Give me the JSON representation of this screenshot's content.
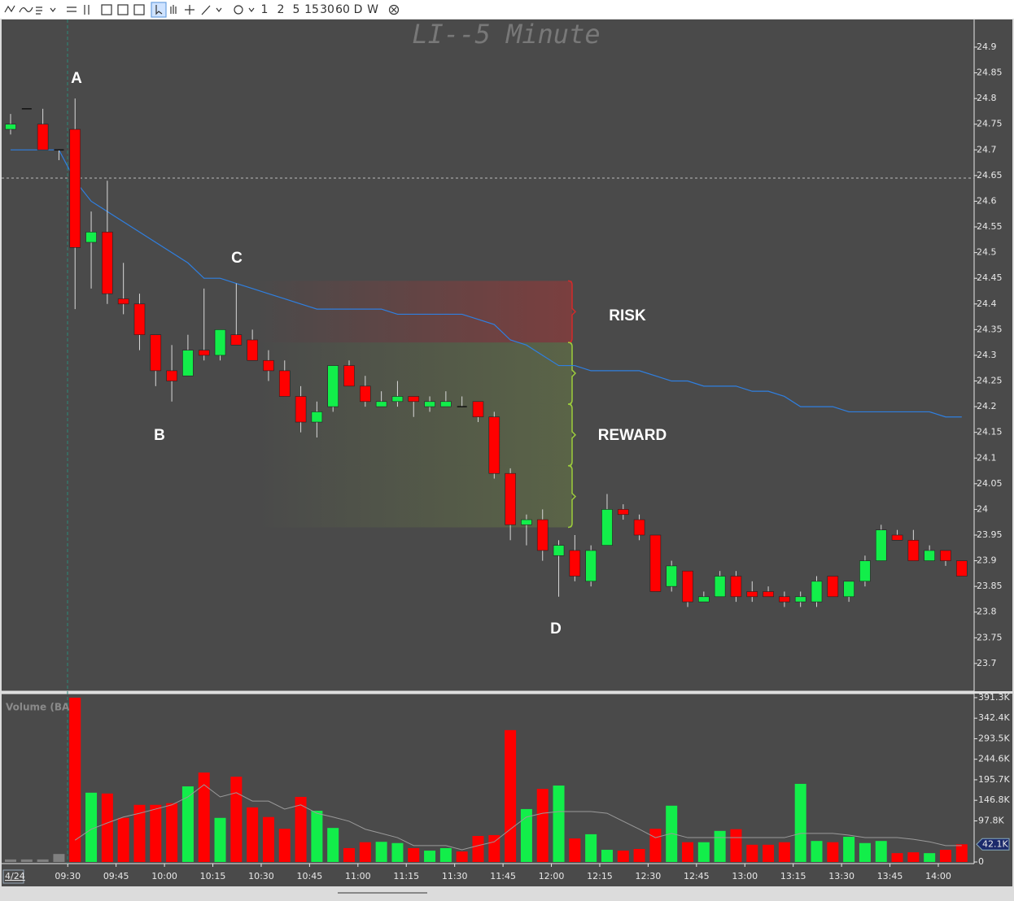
{
  "toolbar": {
    "intervals": [
      "1",
      "2",
      "5",
      "15",
      "30",
      "60",
      "D",
      "W"
    ]
  },
  "chart_data": {
    "type": "candlestick",
    "title": "LI--5 Minute",
    "categories": [
      "4/24",
      null,
      null,
      null,
      "09:30",
      null,
      null,
      "09:45",
      null,
      null,
      "10:00",
      null,
      null,
      "10:15",
      null,
      null,
      "10:30",
      null,
      null,
      "10:45",
      null,
      null,
      "11:00",
      null,
      null,
      "11:15",
      null,
      null,
      "11:30",
      null,
      null,
      "11:45",
      null,
      null,
      "12:00",
      null,
      null,
      "12:15",
      null,
      null,
      "12:30",
      null,
      null,
      "12:45",
      null,
      null,
      "13:00",
      null,
      null,
      "13:15",
      null,
      null,
      "13:30",
      null,
      null,
      "13:45",
      null,
      null,
      "14:00",
      null
    ],
    "open": [
      24.74,
      24.78,
      24.75,
      24.7,
      24.74,
      24.52,
      24.54,
      24.41,
      24.4,
      24.34,
      24.27,
      24.26,
      24.31,
      24.3,
      24.34,
      24.33,
      24.29,
      24.27,
      24.22,
      24.17,
      24.2,
      24.28,
      24.24,
      24.2,
      24.21,
      24.22,
      24.2,
      24.2,
      24.2,
      24.21,
      24.18,
      24.07,
      23.97,
      23.98,
      23.91,
      23.92,
      23.86,
      23.93,
      24.0,
      23.98,
      23.95,
      23.85,
      23.88,
      23.82,
      23.83,
      23.87,
      23.84,
      23.84,
      23.83,
      23.82,
      23.82,
      23.87,
      23.83,
      23.86,
      23.9,
      23.95,
      23.94,
      23.9,
      23.92,
      23.9
    ],
    "high": [
      24.77,
      24.78,
      24.78,
      24.7,
      24.8,
      24.58,
      24.64,
      24.48,
      24.42,
      24.34,
      24.32,
      24.34,
      24.43,
      24.35,
      24.44,
      24.35,
      24.31,
      24.29,
      24.24,
      24.21,
      24.28,
      24.29,
      24.26,
      24.23,
      24.25,
      24.22,
      24.22,
      24.23,
      24.22,
      24.21,
      24.19,
      24.08,
      23.99,
      24.0,
      23.94,
      23.95,
      23.93,
      24.03,
      24.01,
      23.99,
      23.95,
      23.9,
      23.88,
      23.84,
      23.88,
      23.88,
      23.86,
      23.85,
      23.84,
      23.84,
      23.87,
      23.87,
      23.86,
      23.91,
      23.97,
      23.96,
      23.96,
      23.93,
      23.92,
      23.9
    ],
    "low": [
      24.73,
      24.78,
      24.7,
      24.68,
      24.39,
      24.43,
      24.4,
      24.38,
      24.31,
      24.24,
      24.21,
      24.26,
      24.29,
      24.29,
      24.32,
      24.29,
      24.25,
      24.22,
      24.15,
      24.14,
      24.19,
      24.24,
      24.2,
      24.2,
      24.2,
      24.18,
      24.19,
      24.2,
      24.2,
      24.17,
      24.06,
      23.94,
      23.93,
      23.9,
      23.83,
      23.86,
      23.85,
      23.93,
      23.98,
      23.94,
      23.84,
      23.84,
      23.81,
      23.82,
      23.83,
      23.82,
      23.82,
      23.83,
      23.81,
      23.81,
      23.81,
      23.83,
      23.82,
      23.85,
      23.9,
      23.94,
      23.9,
      23.9,
      23.89,
      23.87
    ],
    "close": [
      24.75,
      24.78,
      24.7,
      24.7,
      24.51,
      24.54,
      24.42,
      24.4,
      24.34,
      24.27,
      24.25,
      24.31,
      24.3,
      24.35,
      24.32,
      24.29,
      24.27,
      24.22,
      24.17,
      24.19,
      24.28,
      24.24,
      24.21,
      24.21,
      24.22,
      24.21,
      24.21,
      24.21,
      24.2,
      24.18,
      24.07,
      23.97,
      23.98,
      23.92,
      23.93,
      23.87,
      23.92,
      24.0,
      23.99,
      23.95,
      23.84,
      23.89,
      23.82,
      23.83,
      23.87,
      23.83,
      23.83,
      23.83,
      23.82,
      23.83,
      23.86,
      23.83,
      23.86,
      23.9,
      23.96,
      23.94,
      23.9,
      23.92,
      23.9,
      23.87
    ],
    "up_color": "#12ee4a",
    "down_color": "#ff0000",
    "flat_color": "#111111",
    "vwap": {
      "color": "#2f7fe0",
      "values": [
        24.7,
        24.7,
        24.7,
        24.7,
        24.64,
        24.6,
        24.58,
        24.56,
        24.54,
        24.52,
        24.5,
        24.48,
        24.45,
        24.45,
        24.44,
        24.43,
        24.42,
        24.41,
        24.4,
        24.39,
        24.39,
        24.39,
        24.39,
        24.39,
        24.38,
        24.38,
        24.38,
        24.38,
        24.38,
        24.37,
        24.36,
        24.33,
        24.32,
        24.3,
        24.28,
        24.28,
        24.27,
        24.27,
        24.27,
        24.27,
        24.26,
        24.25,
        24.25,
        24.24,
        24.24,
        24.24,
        24.23,
        24.23,
        24.22,
        24.2,
        24.2,
        24.2,
        24.19,
        24.19,
        24.19,
        24.19,
        24.19,
        24.19,
        24.18,
        24.18
      ]
    },
    "ylim": [
      23.646,
      24.957
    ],
    "yticks": [
      24.9,
      24.85,
      24.8,
      24.75,
      24.7,
      24.65,
      24.6,
      24.55,
      24.5,
      24.45,
      24.4,
      24.35,
      24.3,
      24.25,
      24.2,
      24.15,
      24.1,
      24.05,
      24,
      23.95,
      23.9,
      23.85,
      23.8,
      23.75,
      23.7
    ],
    "zones": {
      "levels": [
        24.445,
        24.325,
        24.205,
        24.085,
        23.965
      ],
      "colors": [
        "#d42a2a",
        "#9ccc3c",
        "#9ccc3c",
        "#9ccc3c"
      ]
    },
    "annotations": [
      "A",
      "B",
      "C",
      "D",
      "RISK",
      "REWARD"
    ],
    "volume": {
      "label": "Volume (BAR)",
      "values": [
        6000,
        6000,
        6000,
        19000,
        391300,
        165000,
        163000,
        105000,
        136000,
        136000,
        140000,
        180000,
        213000,
        105000,
        203000,
        130000,
        107000,
        79000,
        155000,
        122000,
        81000,
        33000,
        47000,
        48000,
        45000,
        33000,
        27000,
        33000,
        25000,
        62000,
        64000,
        314000,
        126000,
        174000,
        182000,
        56000,
        66000,
        29000,
        27000,
        31000,
        79000,
        134000,
        47000,
        47000,
        74000,
        78000,
        41000,
        41000,
        47000,
        186000,
        50000,
        47000,
        60000,
        45000,
        50000,
        21000,
        23000,
        21000,
        29000,
        42100
      ],
      "colors": [
        "#808080",
        "#808080",
        "#808080",
        "#808080",
        "#ff0000",
        "#12ee4a",
        "#ff0000",
        "#ff0000",
        "#ff0000",
        "#ff0000",
        "#ff0000",
        "#12ee4a",
        "#ff0000",
        "#12ee4a",
        "#ff0000",
        "#ff0000",
        "#ff0000",
        "#ff0000",
        "#ff0000",
        "#12ee4a",
        "#12ee4a",
        "#ff0000",
        "#ff0000",
        "#12ee4a",
        "#12ee4a",
        "#ff0000",
        "#12ee4a",
        "#12ee4a",
        "#ff0000",
        "#ff0000",
        "#ff0000",
        "#ff0000",
        "#12ee4a",
        "#ff0000",
        "#12ee4a",
        "#ff0000",
        "#12ee4a",
        "#12ee4a",
        "#ff0000",
        "#ff0000",
        "#ff0000",
        "#12ee4a",
        "#ff0000",
        "#12ee4a",
        "#12ee4a",
        "#ff0000",
        "#ff0000",
        "#ff0000",
        "#ff0000",
        "#12ee4a",
        "#12ee4a",
        "#ff0000",
        "#12ee4a",
        "#12ee4a",
        "#12ee4a",
        "#ff0000",
        "#ff0000",
        "#12ee4a",
        "#ff0000",
        "#ff0000"
      ],
      "ma": {
        "color": "#9a9a9a",
        "values": [
          null,
          null,
          null,
          null,
          52000,
          78000,
          93000,
          107000,
          116000,
          126000,
          136000,
          155000,
          184000,
          155000,
          165000,
          145000,
          145000,
          126000,
          136000,
          116000,
          107000,
          97000,
          78000,
          68000,
          58000,
          39000,
          39000,
          39000,
          29000,
          39000,
          48000,
          78000,
          107000,
          116000,
          120000,
          120000,
          120000,
          116000,
          97000,
          78000,
          58000,
          68000,
          58000,
          58000,
          58000,
          58000,
          58000,
          58000,
          58000,
          68000,
          68000,
          68000,
          64000,
          58000,
          58000,
          58000,
          54000,
          48000,
          39000,
          39000
        ]
      },
      "last_value_label": "42.1K",
      "ylim": [
        0,
        397000
      ],
      "yticks": [
        0,
        {
          "value": 97800,
          "label": "97.8K"
        },
        {
          "value": 146800,
          "label": "146.8K"
        },
        {
          "value": 195700,
          "label": "195.7K"
        },
        {
          "value": 244600,
          "label": "244.6K"
        },
        {
          "value": 293500,
          "label": "293.5K"
        },
        {
          "value": 342400,
          "label": "342.4K"
        },
        {
          "value": 391300,
          "label": "391.3K"
        }
      ]
    }
  }
}
